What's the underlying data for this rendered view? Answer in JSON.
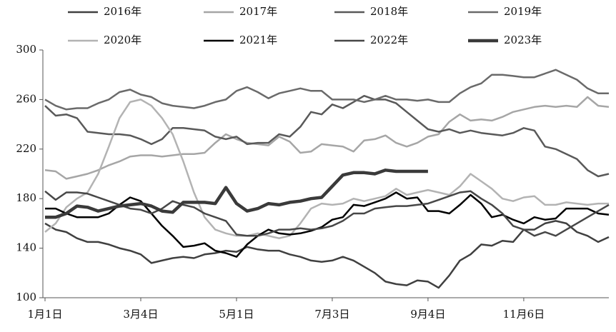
{
  "chart_data": {
    "type": "line",
    "categories": [
      "1月1日",
      null,
      null,
      null,
      null,
      null,
      null,
      null,
      null,
      "3月4日",
      null,
      null,
      null,
      null,
      null,
      null,
      null,
      null,
      "5月1日",
      null,
      null,
      null,
      null,
      null,
      null,
      null,
      null,
      "7月3日",
      null,
      null,
      null,
      null,
      null,
      null,
      null,
      null,
      "9月4日",
      null,
      null,
      null,
      null,
      null,
      null,
      null,
      null,
      "11月6日",
      null,
      null,
      null,
      null,
      null,
      null,
      null,
      null
    ],
    "ylim": [
      100,
      300
    ],
    "yticks": [
      100,
      140,
      180,
      220,
      260,
      300
    ],
    "series": [
      {
        "name": "2016年",
        "color": "#404040",
        "width": 2.5,
        "values": [
          160,
          155,
          153,
          148,
          145,
          145,
          143,
          140,
          138,
          135,
          128,
          130,
          132,
          133,
          132,
          135,
          136,
          138,
          137,
          141,
          139,
          138,
          138,
          135,
          133,
          130,
          129,
          130,
          133,
          130,
          125,
          120,
          113,
          111,
          110,
          114,
          113,
          108,
          118,
          130,
          135,
          143,
          142,
          146,
          145,
          155,
          155,
          160,
          162,
          160,
          153,
          150,
          145,
          149
        ]
      },
      {
        "name": "2017年",
        "color": "#a6a6a6",
        "width": 2.5,
        "values": [
          203,
          202,
          196,
          198,
          200,
          203,
          207,
          210,
          214,
          215,
          215,
          214,
          215,
          216,
          216,
          217,
          225,
          232,
          228,
          225,
          224,
          223,
          230,
          226,
          217,
          218,
          224,
          223,
          222,
          218,
          227,
          228,
          231,
          225,
          222,
          225,
          230,
          232,
          242,
          248,
          243,
          244,
          243,
          246,
          250,
          252,
          254,
          255,
          254,
          255,
          254,
          262,
          255,
          254
        ]
      },
      {
        "name": "2018年",
        "color": "#595959",
        "width": 2.5,
        "values": [
          255,
          247,
          248,
          245,
          234,
          233,
          232,
          232,
          231,
          228,
          224,
          228,
          237,
          237,
          236,
          235,
          230,
          228,
          230,
          224,
          225,
          225,
          232,
          230,
          238,
          250,
          248,
          256,
          253,
          258,
          263,
          260,
          260,
          257,
          250,
          243,
          236,
          234,
          236,
          233,
          235,
          233,
          232,
          231,
          233,
          237,
          235,
          222,
          220,
          216,
          212,
          203,
          198,
          200
        ]
      },
      {
        "name": "2019年",
        "color": "#6a6a6a",
        "width": 2.5,
        "values": [
          260,
          255,
          252,
          253,
          253,
          257,
          260,
          266,
          268,
          264,
          262,
          257,
          255,
          254,
          253,
          255,
          258,
          260,
          267,
          270,
          266,
          261,
          265,
          267,
          269,
          267,
          267,
          260,
          260,
          260,
          258,
          260,
          263,
          260,
          260,
          259,
          260,
          258,
          258,
          265,
          270,
          273,
          280,
          280,
          279,
          278,
          278,
          281,
          284,
          280,
          276,
          269,
          265,
          265
        ]
      },
      {
        "name": "2020年",
        "color": "#b3b3b3",
        "width": 2.5,
        "values": [
          153,
          160,
          173,
          180,
          185,
          200,
          222,
          245,
          258,
          260,
          255,
          245,
          232,
          210,
          185,
          165,
          155,
          152,
          150,
          150,
          152,
          150,
          148,
          150,
          160,
          172,
          176,
          175,
          176,
          180,
          178,
          180,
          182,
          188,
          183,
          185,
          187,
          185,
          183,
          190,
          200,
          194,
          188,
          180,
          178,
          181,
          182,
          175,
          175,
          177,
          176,
          175,
          176,
          176
        ]
      },
      {
        "name": "2021年",
        "color": "#000000",
        "width": 2.5,
        "values": [
          172,
          172,
          168,
          165,
          165,
          165,
          168,
          175,
          181,
          178,
          168,
          158,
          150,
          141,
          142,
          144,
          138,
          136,
          133,
          143,
          150,
          155,
          152,
          151,
          152,
          154,
          157,
          163,
          165,
          175,
          174,
          177,
          180,
          185,
          180,
          181,
          170,
          170,
          168,
          175,
          183,
          176,
          165,
          167,
          163,
          160,
          165,
          163,
          164,
          172,
          172,
          172,
          168,
          167
        ]
      },
      {
        "name": "2022年",
        "color": "#474747",
        "width": 2.5,
        "values": [
          186,
          179,
          185,
          185,
          184,
          181,
          178,
          175,
          172,
          171,
          168,
          172,
          178,
          175,
          173,
          168,
          165,
          162,
          151,
          150,
          150,
          152,
          155,
          155,
          156,
          155,
          156,
          158,
          162,
          168,
          168,
          172,
          173,
          174,
          174,
          175,
          176,
          179,
          182,
          185,
          186,
          180,
          175,
          168,
          158,
          155,
          150,
          153,
          150,
          155,
          160,
          165,
          170,
          175
        ]
      },
      {
        "name": "2023年",
        "color": "#3a3a3a",
        "width": 4.5,
        "values": [
          165,
          165,
          168,
          174,
          173,
          170,
          172,
          174,
          175,
          176,
          174,
          170,
          169,
          177,
          177,
          177,
          176,
          189,
          176,
          170,
          172,
          176,
          175,
          177,
          178,
          180,
          181,
          190,
          199,
          201,
          201,
          200,
          203,
          202,
          202,
          202,
          202,
          null,
          null,
          null,
          null,
          null,
          null,
          null,
          null,
          null,
          null,
          null,
          null,
          null,
          null,
          null,
          null,
          null
        ]
      }
    ]
  }
}
